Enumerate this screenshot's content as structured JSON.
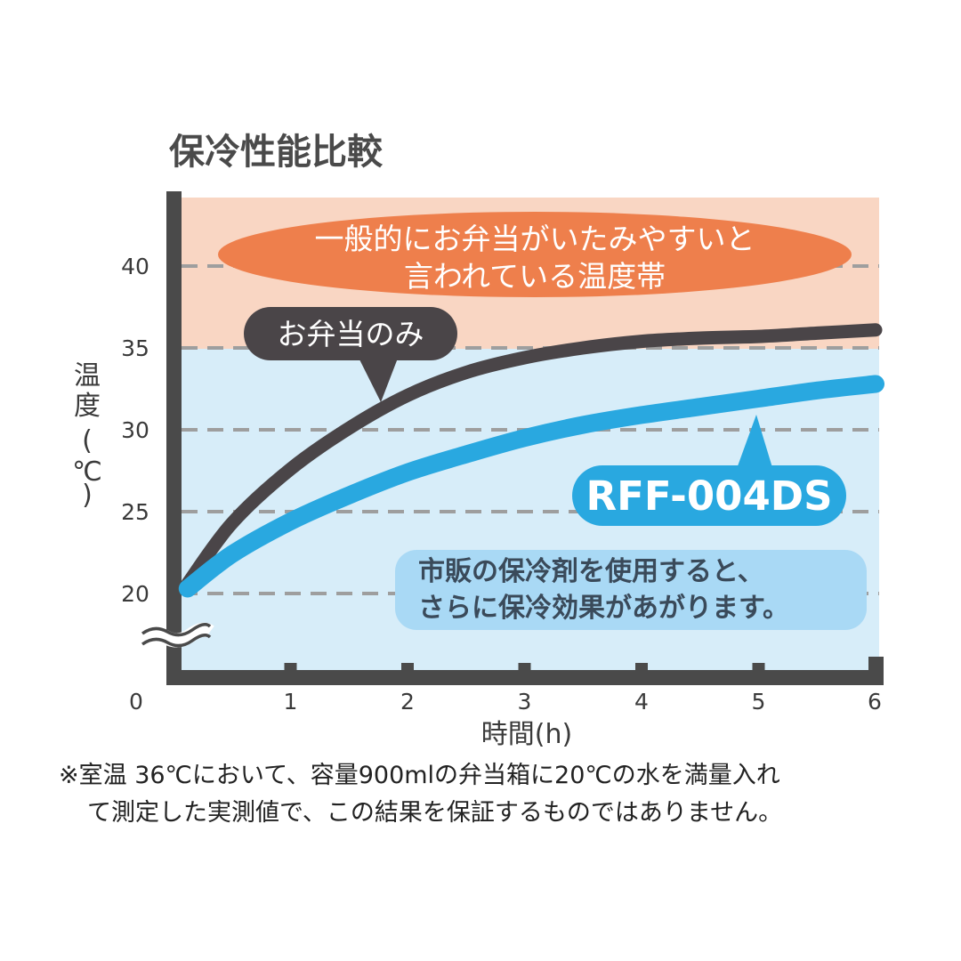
{
  "chart_data": {
    "type": "line",
    "title": "保冷性能比較",
    "xlabel": "時間(h)",
    "ylabel": [
      "温",
      "度",
      "(",
      "℃",
      ")"
    ],
    "x_ticks": [
      "0",
      "1",
      "2",
      "3",
      "4",
      "5",
      "6"
    ],
    "y_ticks": [
      "20",
      "25",
      "30",
      "35",
      "40"
    ],
    "xlim": [
      0,
      6
    ],
    "ylim": [
      20,
      40
    ],
    "y_axis_break": true,
    "grid": "dashed horizontal lines at 20, 25, 30, 35, 40",
    "bands": [
      {
        "from": 35,
        "to": 43,
        "color": "#f9d6c3",
        "label_lines": [
          "一般的にお弁当がいたみやすいと",
          "言われている温度帯"
        ]
      },
      {
        "from": 16,
        "to": 35,
        "color": "#d7edf9"
      }
    ],
    "series": [
      {
        "name": "お弁当のみ",
        "color": "#4a4548",
        "x": [
          0.12,
          0.5,
          1,
          1.5,
          2,
          2.5,
          3,
          3.5,
          4,
          4.5,
          5,
          5.5,
          6
        ],
        "y": [
          20.6,
          24.3,
          27.6,
          30.1,
          32.1,
          33.5,
          34.4,
          35.0,
          35.4,
          35.6,
          35.7,
          35.9,
          36.1
        ]
      },
      {
        "name": "RFF-004DS",
        "color": "#29a8e0",
        "x": [
          0.12,
          0.5,
          1,
          1.5,
          2,
          2.5,
          3,
          3.5,
          4,
          4.5,
          5,
          5.5,
          6
        ],
        "y": [
          20.3,
          22.4,
          24.4,
          26.0,
          27.4,
          28.5,
          29.5,
          30.3,
          30.9,
          31.4,
          31.9,
          32.4,
          32.8
        ]
      }
    ],
    "annotations": {
      "info_lines": [
        "市販の保冷剤を使用すると、",
        "さらに保冷効果があがります。"
      ]
    }
  },
  "footnote_lines": [
    "※室温 36℃において、容量900mlの弁当箱に20℃の水を満量入れ",
    "て測定した実測値で、この結果を保証するものではありません。"
  ],
  "colors": {
    "axis": "#4a4a4a",
    "grid": "#9e9e9e",
    "warn_balloon": "#ee7f4c",
    "info_box": "#a9d9f5",
    "rff_balloon": "#29a8e0",
    "bento_balloon": "#4a4548"
  }
}
